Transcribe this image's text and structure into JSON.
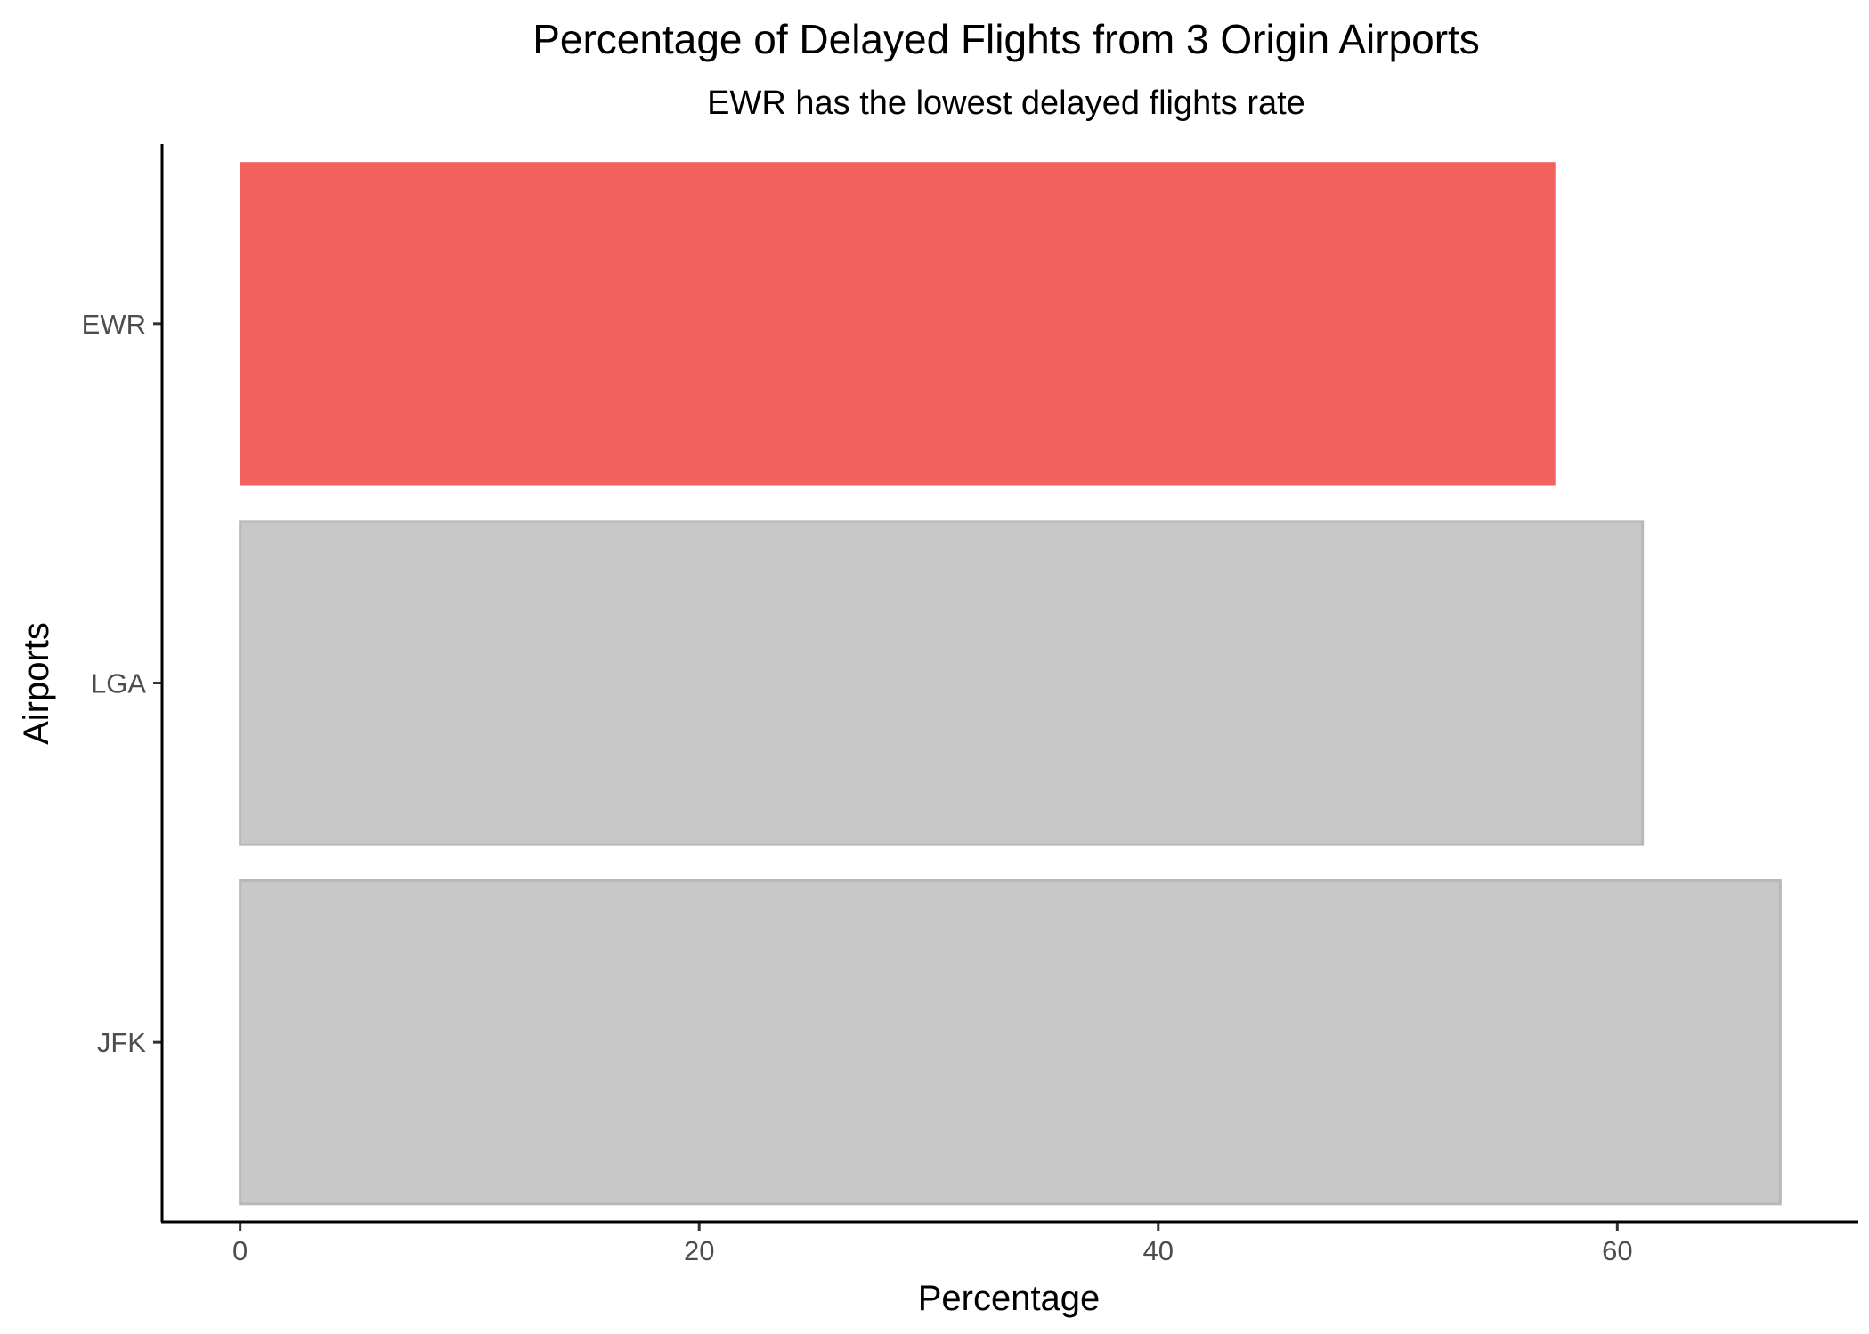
{
  "chart_data": {
    "type": "bar",
    "orientation": "horizontal",
    "title": "Percentage of Delayed Flights from 3 Origin Airports",
    "subtitle": "EWR has the lowest delayed flights rate",
    "xlabel": "Percentage",
    "ylabel": "Airports",
    "categories": [
      "EWR",
      "LGA",
      "JFK"
    ],
    "values": [
      57.3,
      61.1,
      67.1
    ],
    "highlight": "EWR",
    "colors": {
      "highlight": "#F2615D",
      "default": "#C8C8C8",
      "border": "#B8B8B8"
    },
    "xlim": [
      -3.4,
      70.5
    ],
    "xticks": [
      "0",
      "20",
      "40",
      "60"
    ],
    "grid": false,
    "legend": "none"
  }
}
